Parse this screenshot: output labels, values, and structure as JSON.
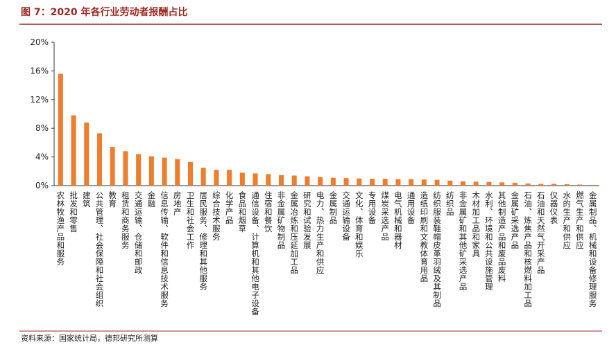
{
  "chart_data": {
    "type": "bar",
    "title": "图 7：2020 年各行业劳动者报酬占比",
    "source": "资料来源：国家统计局，德邦研究所测算",
    "color": "#ee7d2c",
    "categories": [
      "农林牧渔产品和服务",
      "批发和零售",
      "建筑",
      "公共管理、社会保障和社会组织",
      "教育",
      "租赁和商务服务",
      "交通运输、仓储和邮政",
      "金融",
      "信息传输、软件和信息技术服务",
      "房地产",
      "卫生和社会工作",
      "居民服务、修理和其他服务",
      "综合技术服务",
      "化学产品",
      "食品和烟草",
      "通信设备、计算机和其他电子设备",
      "住宿和餐饮",
      "非金属矿物制品",
      "金属冶炼和压延加工品",
      "研究和试验发展",
      "电力、热力生产和供应",
      "金属制品",
      "交通运输设备",
      "文化、体育和娱乐",
      "专用设备",
      "煤炭采选产品",
      "电气机械和器材",
      "通用设备",
      "造纸印刷和文教体育用品",
      "纺织服装鞋帽皮革羽绒及其制品",
      "纺织品",
      "非金属矿和其他矿采选产品",
      "木材加工品和家具",
      "水利、环境和公共设施管理",
      "其他制造产品和废品废料",
      "金属矿采选产品",
      "石油、炼焦产品和核燃料加工品",
      "石油和天然气开采产品",
      "仪器仪表",
      "水的生产和供应",
      "燃气生产和供应",
      "金属制品、机械和设备修理服务"
    ],
    "values": [
      15.6,
      9.8,
      8.8,
      7.3,
      5.4,
      4.8,
      4.4,
      4.1,
      3.9,
      3.7,
      3.3,
      2.5,
      2.2,
      2.2,
      1.8,
      1.7,
      1.6,
      1.45,
      1.4,
      1.3,
      1.2,
      1.1,
      1.05,
      1.0,
      0.95,
      0.95,
      0.9,
      0.9,
      0.85,
      0.8,
      0.7,
      0.6,
      0.55,
      0.5,
      0.45,
      0.4,
      0.3,
      0.25,
      0.25,
      0.2,
      0.15,
      0.1
    ],
    "ylim": [
      0,
      20
    ],
    "yticks": [
      {
        "value": 0,
        "label": "0%"
      },
      {
        "value": 4,
        "label": "4%"
      },
      {
        "value": 8,
        "label": "8%"
      },
      {
        "value": 12,
        "label": "12%"
      },
      {
        "value": 16,
        "label": "16%"
      },
      {
        "value": 20,
        "label": "20%"
      }
    ]
  }
}
